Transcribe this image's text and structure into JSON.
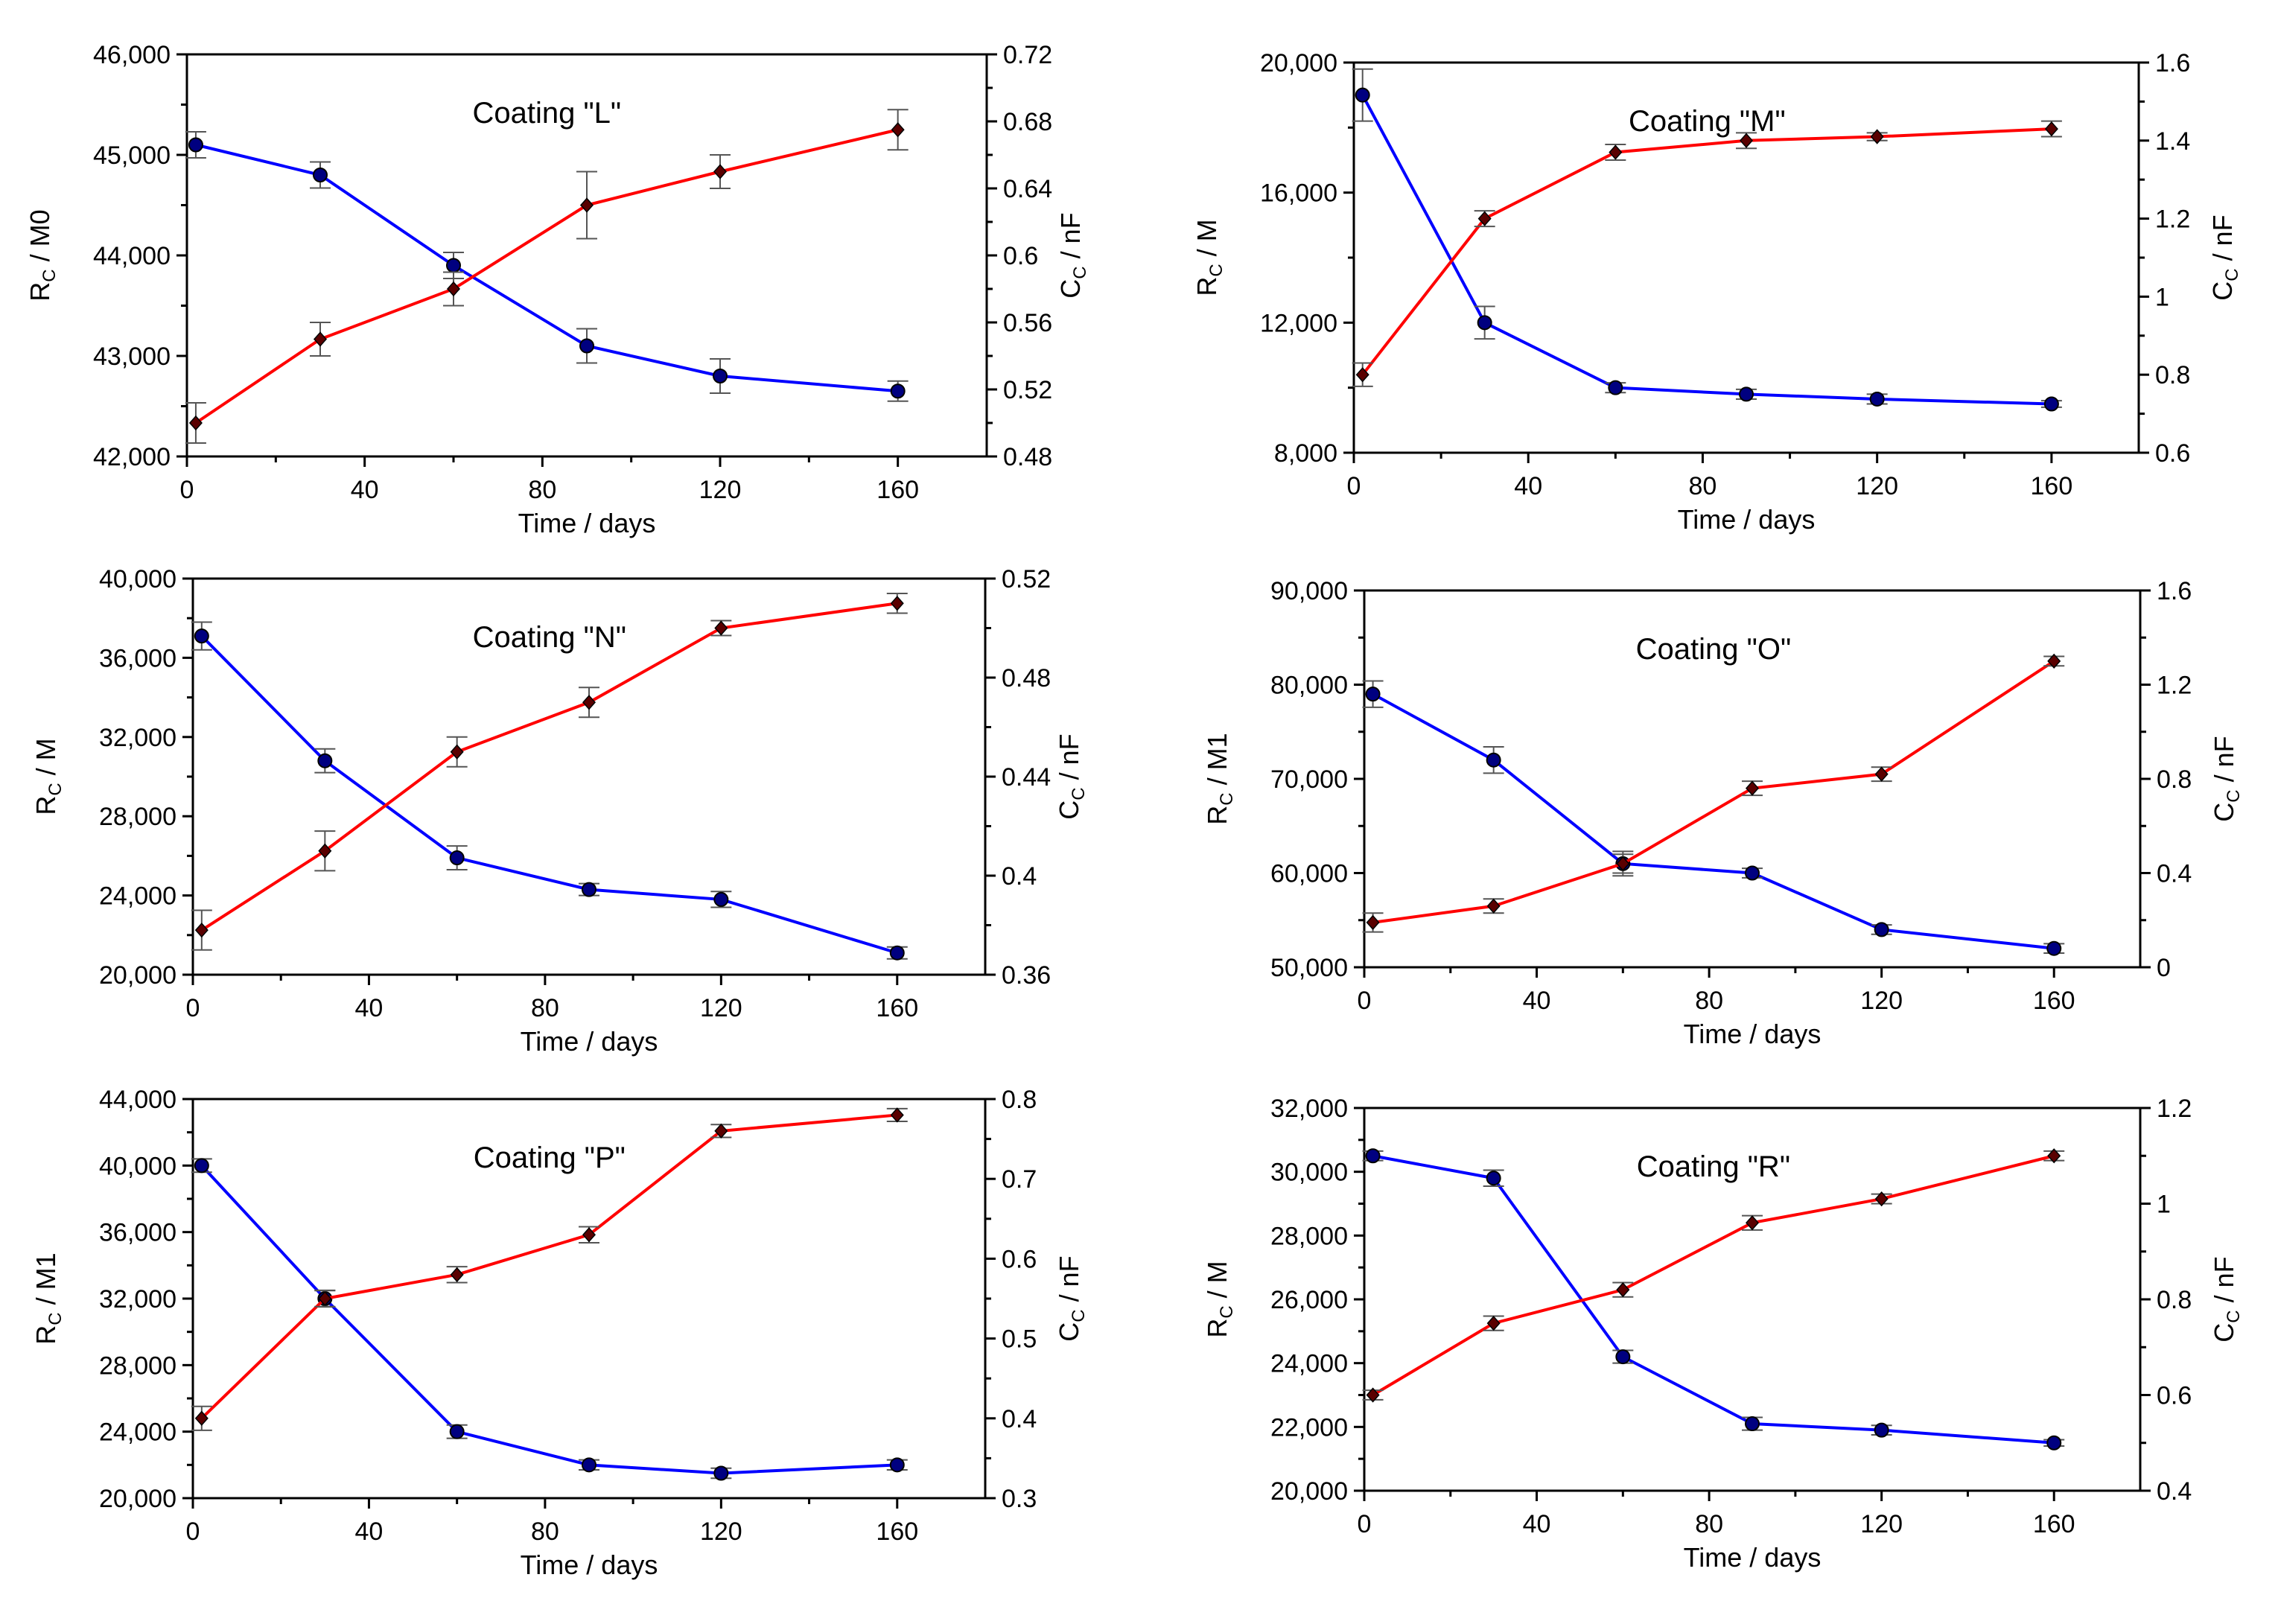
{
  "colors": {
    "rc_series": "#0000ff",
    "cc_series": "#ff0000",
    "rc_marker": "#000080",
    "cc_marker": "#5a0000",
    "axes": "#000000"
  },
  "chart_data": [
    {
      "type": "line",
      "title": "Coating \"L\"",
      "xlabel": "Time / days",
      "ylabel_main": "R",
      "ylabel_sub": "C",
      "ylabel_unit": " / M0",
      "y2label_main": "C",
      "y2label_sub": "C",
      "y2label_unit": " / nF",
      "xlim": [
        0,
        180
      ],
      "xticks": [
        "0",
        "40",
        "80",
        "120",
        "160"
      ],
      "ylim": [
        42000,
        46000
      ],
      "yticks": [
        "42,000",
        "43,000",
        "44,000",
        "45,000",
        "46,000"
      ],
      "y2lim": [
        0.48,
        0.72
      ],
      "y2ticks": [
        "0.48",
        "0.52",
        "0.56",
        "0.6",
        "0.64",
        "0.68",
        "0.72"
      ],
      "series": [
        {
          "name": "Rc",
          "axis": "left",
          "x": [
            2,
            30,
            60,
            90,
            120,
            160
          ],
          "values": [
            45100,
            44800,
            43900,
            43100,
            42800,
            42650
          ],
          "errors": [
            130,
            130,
            130,
            170,
            170,
            100
          ]
        },
        {
          "name": "Cc",
          "axis": "right",
          "x": [
            2,
            30,
            60,
            90,
            120,
            160
          ],
          "values": [
            0.5,
            0.55,
            0.58,
            0.63,
            0.65,
            0.675
          ],
          "errors": [
            0.012,
            0.01,
            0.01,
            0.02,
            0.01,
            0.012
          ]
        }
      ]
    },
    {
      "type": "line",
      "title": "Coating \"M\"",
      "xlabel": "Time / days",
      "ylabel_main": "R",
      "ylabel_sub": "C",
      "ylabel_unit": " / M",
      "y2label_main": "C",
      "y2label_sub": "C",
      "y2label_unit": " / nF",
      "xlim": [
        0,
        180
      ],
      "xticks": [
        "0",
        "40",
        "80",
        "120",
        "160"
      ],
      "ylim": [
        8000,
        20000
      ],
      "yticks": [
        "8,000",
        "12,000",
        "16,000",
        "20,000"
      ],
      "y2lim": [
        0.6,
        1.6
      ],
      "y2ticks": [
        "0.6",
        "0.8",
        "1",
        "1.2",
        "1.4",
        "1.6"
      ],
      "series": [
        {
          "name": "Rc",
          "axis": "left",
          "x": [
            2,
            30,
            60,
            90,
            120,
            160
          ],
          "values": [
            19000,
            12000,
            10000,
            9800,
            9650,
            9500
          ],
          "errors": [
            800,
            500,
            150,
            150,
            150,
            100
          ]
        },
        {
          "name": "Cc",
          "axis": "right",
          "x": [
            2,
            30,
            60,
            90,
            120,
            160
          ],
          "values": [
            0.8,
            1.2,
            1.37,
            1.4,
            1.41,
            1.43
          ],
          "errors": [
            0.03,
            0.02,
            0.02,
            0.02,
            0.01,
            0.02
          ]
        }
      ]
    },
    {
      "type": "line",
      "title": "Coating \"N\"",
      "xlabel": "Time / days",
      "ylabel_main": "R",
      "ylabel_sub": "C",
      "ylabel_unit": " / M",
      "y2label_main": "C",
      "y2label_sub": "C",
      "y2label_unit": " / nF",
      "xlim": [
        0,
        180
      ],
      "xticks": [
        "0",
        "40",
        "80",
        "120",
        "160"
      ],
      "ylim": [
        20000,
        40000
      ],
      "yticks": [
        "20,000",
        "24,000",
        "28,000",
        "32,000",
        "36,000",
        "40,000"
      ],
      "y2lim": [
        0.36,
        0.52
      ],
      "y2ticks": [
        "0.36",
        "0.4",
        "0.44",
        "0.48",
        "0.52"
      ],
      "series": [
        {
          "name": "Rc",
          "axis": "left",
          "x": [
            2,
            30,
            60,
            90,
            120,
            160
          ],
          "values": [
            37100,
            30800,
            25900,
            24300,
            23800,
            21100
          ],
          "errors": [
            700,
            600,
            600,
            300,
            400,
            300
          ]
        },
        {
          "name": "Cc",
          "axis": "right",
          "x": [
            2,
            30,
            60,
            90,
            120,
            160
          ],
          "values": [
            0.378,
            0.41,
            0.45,
            0.47,
            0.5,
            0.51
          ],
          "errors": [
            0.008,
            0.008,
            0.006,
            0.006,
            0.003,
            0.004
          ]
        }
      ]
    },
    {
      "type": "line",
      "title": "Coating \"O\"",
      "xlabel": "Time / days",
      "ylabel_main": "R",
      "ylabel_sub": "C",
      "ylabel_unit": " / M1",
      "y2label_main": "C",
      "y2label_sub": "C",
      "y2label_unit": " / nF",
      "xlim": [
        0,
        180
      ],
      "xticks": [
        "0",
        "40",
        "80",
        "120",
        "160"
      ],
      "ylim": [
        50000,
        90000
      ],
      "yticks": [
        "50,000",
        "60,000",
        "70,000",
        "80,000",
        "90,000"
      ],
      "y2lim": [
        0,
        1.6
      ],
      "y2ticks": [
        "0",
        "0.4",
        "0.8",
        "1.2",
        "1.6"
      ],
      "series": [
        {
          "name": "Rc",
          "axis": "left",
          "x": [
            2,
            30,
            60,
            90,
            120,
            160
          ],
          "values": [
            79000,
            72000,
            61000,
            60000,
            54000,
            52000
          ],
          "errors": [
            1400,
            1400,
            1300,
            500,
            500,
            500
          ]
        },
        {
          "name": "Cc",
          "axis": "right",
          "x": [
            2,
            30,
            60,
            90,
            120,
            160
          ],
          "values": [
            0.19,
            0.26,
            0.44,
            0.76,
            0.82,
            1.3
          ],
          "errors": [
            0.04,
            0.03,
            0.04,
            0.03,
            0.03,
            0.02
          ]
        }
      ]
    },
    {
      "type": "line",
      "title": "Coating \"P\"",
      "xlabel": "Time / days",
      "ylabel_main": "R",
      "ylabel_sub": "C",
      "ylabel_unit": " / M1",
      "y2label_main": "C",
      "y2label_sub": "C",
      "y2label_unit": " / nF",
      "xlim": [
        0,
        180
      ],
      "xticks": [
        "0",
        "40",
        "80",
        "120",
        "160"
      ],
      "ylim": [
        20000,
        44000
      ],
      "yticks": [
        "20,000",
        "24,000",
        "28,000",
        "32,000",
        "36,000",
        "40,000",
        "44,000"
      ],
      "y2lim": [
        0.3,
        0.8
      ],
      "y2ticks": [
        "0.3",
        "0.4",
        "0.5",
        "0.6",
        "0.7",
        "0.8"
      ],
      "series": [
        {
          "name": "Rc",
          "axis": "left",
          "x": [
            2,
            30,
            60,
            90,
            120,
            160
          ],
          "values": [
            40000,
            32000,
            24000,
            22000,
            21500,
            22000
          ],
          "errors": [
            400,
            500,
            400,
            300,
            300,
            300
          ]
        },
        {
          "name": "Cc",
          "axis": "right",
          "x": [
            2,
            30,
            60,
            90,
            120,
            160
          ],
          "values": [
            0.4,
            0.55,
            0.58,
            0.63,
            0.76,
            0.78
          ],
          "errors": [
            0.015,
            0.01,
            0.01,
            0.01,
            0.008,
            0.008
          ]
        }
      ]
    },
    {
      "type": "line",
      "title": "Coating \"R\"",
      "xlabel": "Time / days",
      "ylabel_main": "R",
      "ylabel_sub": "C",
      "ylabel_unit": " / M",
      "y2label_main": "C",
      "y2label_sub": "C",
      "y2label_unit": " / nF",
      "xlim": [
        0,
        180
      ],
      "xticks": [
        "0",
        "40",
        "80",
        "120",
        "160"
      ],
      "ylim": [
        20000,
        32000
      ],
      "yticks": [
        "20,000",
        "22,000",
        "24,000",
        "26,000",
        "28,000",
        "30,000",
        "32,000"
      ],
      "y2lim": [
        0.4,
        1.2
      ],
      "y2ticks": [
        "0.4",
        "0.6",
        "0.8",
        "1",
        "1.2"
      ],
      "series": [
        {
          "name": "Rc",
          "axis": "left",
          "x": [
            2,
            30,
            60,
            90,
            120,
            160
          ],
          "values": [
            30500,
            29800,
            24200,
            22100,
            21900,
            21500
          ],
          "errors": [
            150,
            250,
            200,
            200,
            150,
            100
          ]
        },
        {
          "name": "Cc",
          "axis": "right",
          "x": [
            2,
            30,
            60,
            90,
            120,
            160
          ],
          "values": [
            0.6,
            0.75,
            0.82,
            0.96,
            1.01,
            1.1
          ],
          "errors": [
            0.01,
            0.015,
            0.015,
            0.015,
            0.01,
            0.01
          ]
        }
      ]
    }
  ]
}
